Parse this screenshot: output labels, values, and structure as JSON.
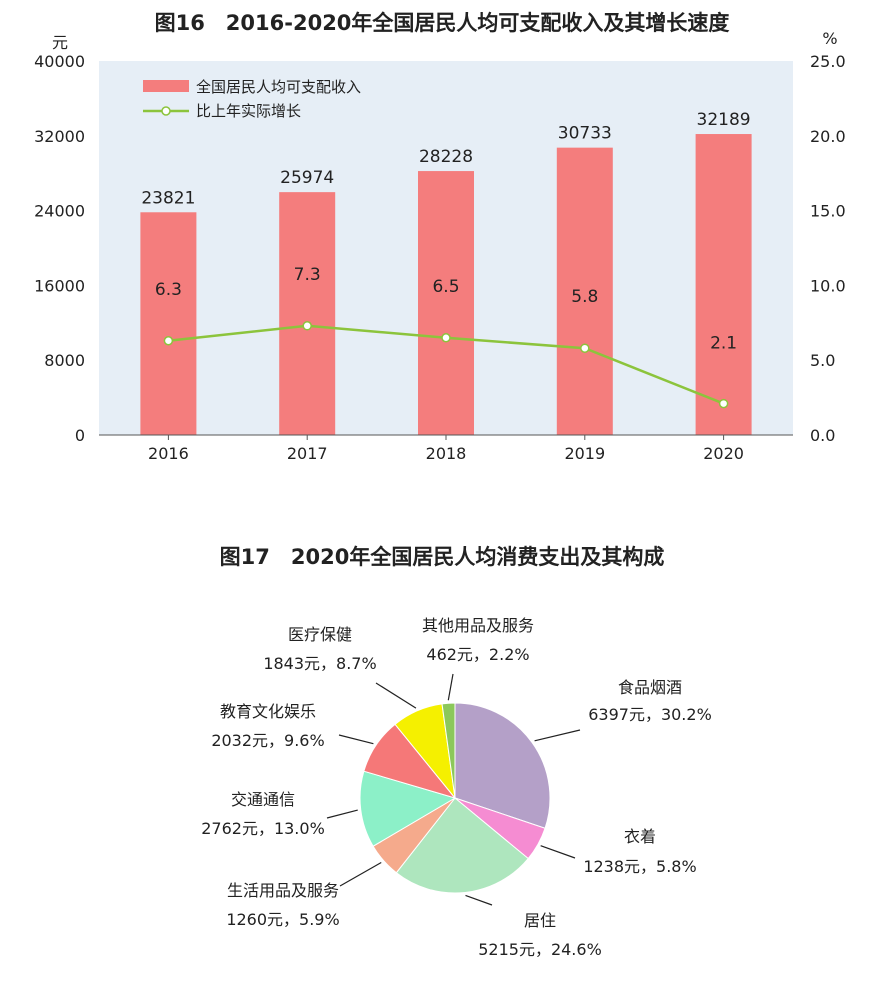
{
  "chart_data": [
    {
      "type": "bar",
      "title": "图16　2016-2020年全国居民人均可支配收入及其增长速度",
      "ylabel_left": "元",
      "ylabel_right": "%",
      "categories": [
        "2016",
        "2017",
        "2018",
        "2019",
        "2020"
      ],
      "ylim_left": [
        0,
        40000
      ],
      "yticks_left": [
        "0",
        "8000",
        "16000",
        "24000",
        "32000",
        "40000"
      ],
      "ylim_right": [
        0,
        25
      ],
      "yticks_right": [
        "0.0",
        "5.0",
        "10.0",
        "15.0",
        "20.0",
        "25.0"
      ],
      "series": [
        {
          "name": "全国居民人均可支配收入",
          "kind": "bar",
          "axis": "left",
          "color": "#f47d7d",
          "values": [
            23821,
            25974,
            28228,
            30733,
            32189
          ]
        },
        {
          "name": "比上年实际增长",
          "kind": "line",
          "axis": "right",
          "color": "#8cc43c",
          "values": [
            6.3,
            7.3,
            6.5,
            5.8,
            2.1
          ]
        }
      ],
      "legend": "top-left",
      "background": "#e6eef6"
    },
    {
      "type": "pie",
      "title": "图17　2020年全国居民人均消费支出及其构成",
      "slices": [
        {
          "name": "食品烟酒",
          "value": 6397,
          "label": "6397元，30.2%",
          "color": "#b4a0c8"
        },
        {
          "name": "衣着",
          "value": 1238,
          "label": "1238元，5.8%",
          "color": "#f58cd2"
        },
        {
          "name": "居住",
          "value": 5215,
          "label": "5215元，24.6%",
          "color": "#aee6be"
        },
        {
          "name": "生活用品及服务",
          "value": 1260,
          "label": "1260元，5.9%",
          "color": "#f5aa8c"
        },
        {
          "name": "交通通信",
          "value": 2762,
          "label": "2762元，13.0%",
          "color": "#8cf0c8"
        },
        {
          "name": "教育文化娱乐",
          "value": 2032,
          "label": "2032元，9.6%",
          "color": "#f57878"
        },
        {
          "name": "医疗保健",
          "value": 1843,
          "label": "1843元，8.7%",
          "color": "#f5f000"
        },
        {
          "name": "其他用品及服务",
          "value": 462,
          "label": "462元，2.2%",
          "color": "#8cc85a"
        }
      ]
    }
  ]
}
